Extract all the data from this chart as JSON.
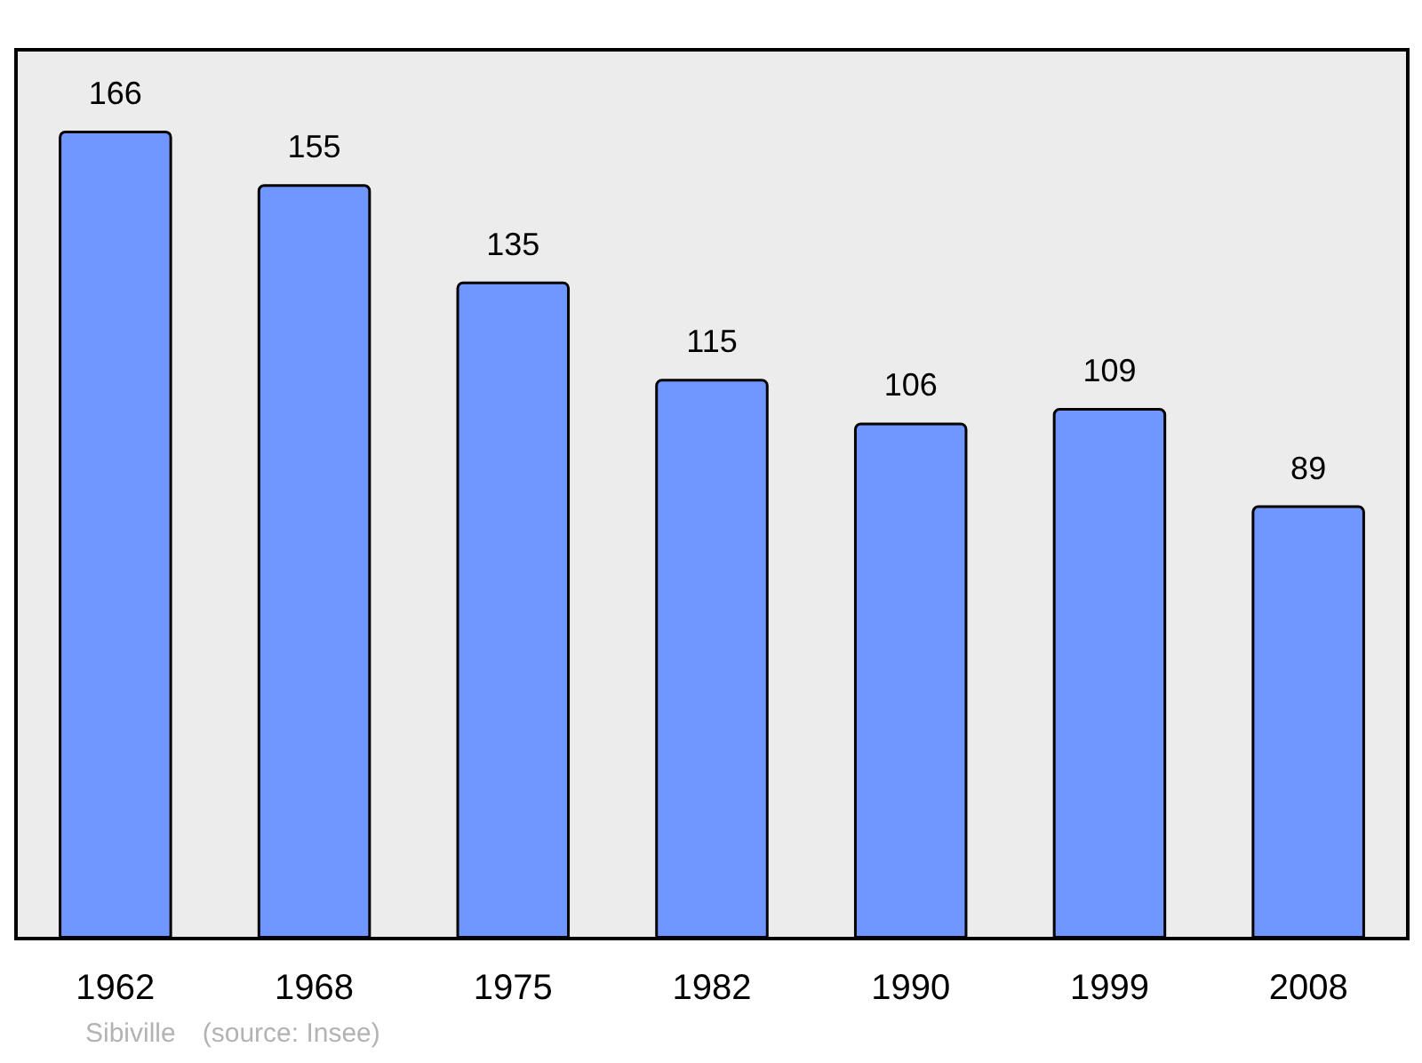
{
  "chart_data": {
    "type": "bar",
    "categories": [
      "1962",
      "1968",
      "1975",
      "1982",
      "1990",
      "1999",
      "2008"
    ],
    "values": [
      166,
      155,
      135,
      115,
      106,
      109,
      89
    ],
    "color": "#7097ff",
    "data_labels": true,
    "tick_labels": "x",
    "annotations": [
      "Sibiville",
      "(source: Insee)"
    ]
  }
}
